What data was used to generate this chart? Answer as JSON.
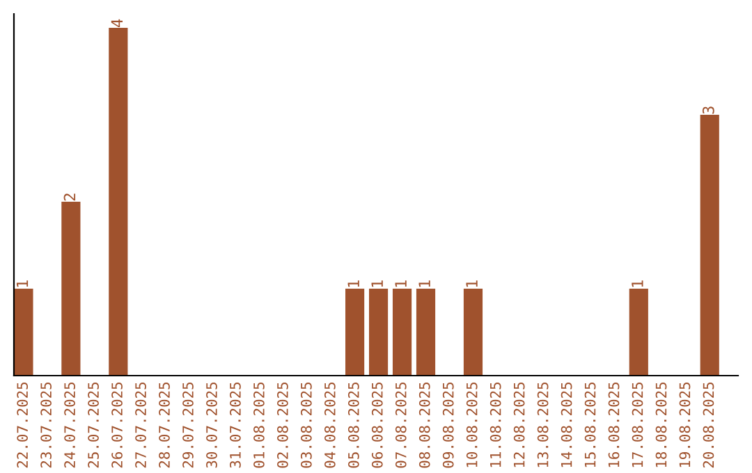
{
  "chart_data": {
    "type": "bar",
    "categories": [
      "22.07.2025",
      "23.07.2025",
      "24.07.2025",
      "25.07.2025",
      "26.07.2025",
      "27.07.2025",
      "28.07.2025",
      "29.07.2025",
      "30.07.2025",
      "31.07.2025",
      "01.08.2025",
      "02.08.2025",
      "03.08.2025",
      "04.08.2025",
      "05.08.2025",
      "06.08.2025",
      "07.08.2025",
      "08.08.2025",
      "09.08.2025",
      "10.08.2025",
      "11.08.2025",
      "12.08.2025",
      "13.08.2025",
      "14.08.2025",
      "15.08.2025",
      "16.08.2025",
      "17.08.2025",
      "18.08.2025",
      "19.08.2025",
      "20.08.2025"
    ],
    "values": [
      1,
      null,
      2,
      null,
      4,
      null,
      null,
      null,
      null,
      null,
      null,
      null,
      null,
      null,
      1,
      1,
      1,
      1,
      null,
      1,
      null,
      null,
      null,
      null,
      null,
      null,
      1,
      null,
      null,
      3
    ],
    "value_labels": [
      "1",
      null,
      "2",
      null,
      "4",
      null,
      null,
      null,
      null,
      null,
      null,
      null,
      null,
      null,
      "1",
      "1",
      "1",
      "1",
      null,
      "1",
      null,
      null,
      null,
      null,
      null,
      null,
      "1",
      null,
      null,
      "3"
    ],
    "color": "#a0522d",
    "ylim": [
      0,
      4.16
    ],
    "tick_labels": "x",
    "grid": false,
    "legend": false
  }
}
